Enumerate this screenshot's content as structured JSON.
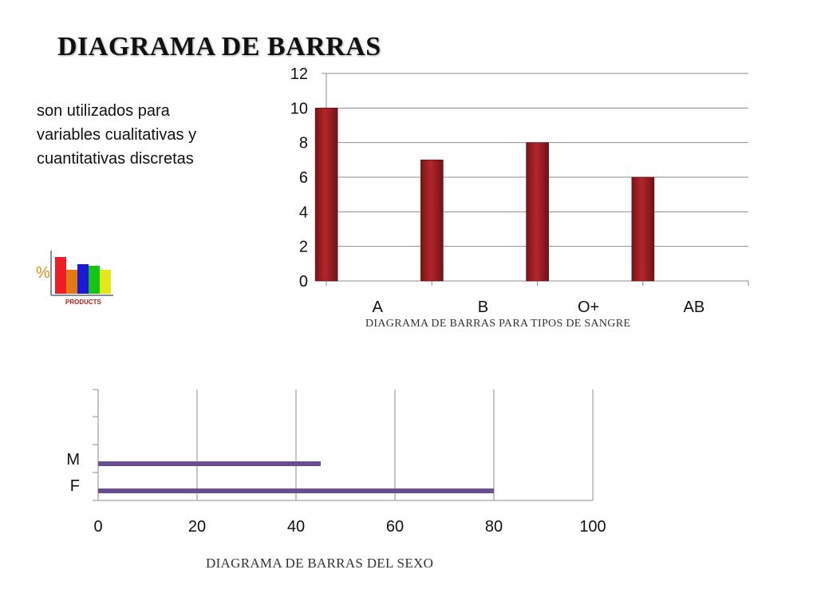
{
  "slide": {
    "title": "DIAGRAMA DE BARRAS",
    "description": "son utilizados para variables cualitativas y cuantitativas discretas",
    "icon": {
      "name": "bar-chart-products-icon",
      "symbol": "%",
      "label": "PRODUCTS"
    }
  },
  "chart_data": [
    {
      "type": "bar",
      "orientation": "vertical",
      "categories": [
        "A",
        "B",
        "O+",
        "AB"
      ],
      "values": [
        10,
        7,
        8,
        6
      ],
      "ylim": [
        0,
        12
      ],
      "yticks": [
        0,
        2,
        4,
        6,
        8,
        10,
        12
      ],
      "grid": true,
      "color": "#b3262b",
      "caption": "DIAGRAMA DE BARRAS PARA TIPOS DE SANGRE"
    },
    {
      "type": "bar",
      "orientation": "horizontal",
      "categories": [
        "M",
        "F"
      ],
      "values": [
        45,
        80
      ],
      "xlim": [
        0,
        100
      ],
      "xticks": [
        0,
        20,
        40,
        60,
        80,
        100
      ],
      "grid": true,
      "color": "#6a4f8f",
      "caption": "DIAGRAMA DE BARRAS DEL SEXO"
    }
  ]
}
